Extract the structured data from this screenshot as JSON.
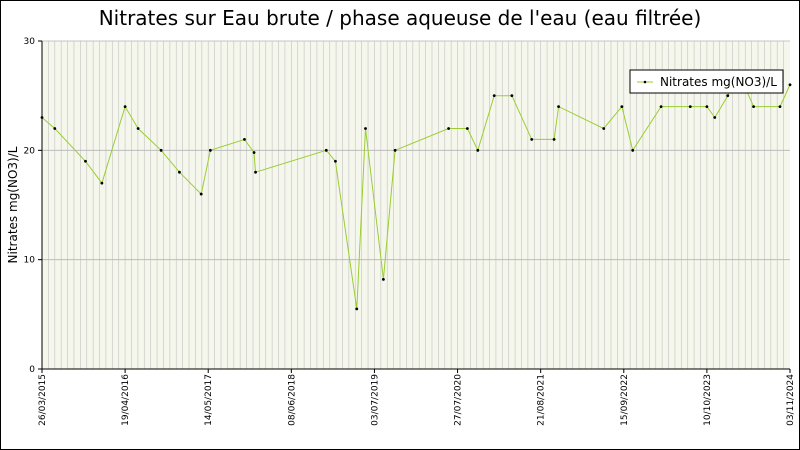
{
  "chart_data": {
    "type": "line",
    "title": "Nitrates sur Eau brute / phase aqueuse de l'eau (eau filtrée)",
    "ylabel": "Nitrates mg(NO3)/L",
    "xlabel": "",
    "ylim": [
      0,
      30
    ],
    "yticks": [
      0,
      10,
      20,
      30
    ],
    "xlim": [
      "2015-03-26",
      "2024-11-03"
    ],
    "xtick_labels": [
      "26/03/2015",
      "19/04/2016",
      "14/05/2017",
      "08/06/2018",
      "03/07/2019",
      "27/07/2020",
      "21/08/2021",
      "15/09/2022",
      "10/10/2023",
      "03/11/2024"
    ],
    "grid": true,
    "legend_position": "top-right",
    "series": [
      {
        "name": "Nitrates mg(NO3)/L",
        "color": "#9acd32",
        "points": [
          [
            "2015-03-26",
            23
          ],
          [
            "2015-05-25",
            22
          ],
          [
            "2015-10-16",
            19
          ],
          [
            "2016-01-01",
            17
          ],
          [
            "2016-04-19",
            24
          ],
          [
            "2016-06-19",
            22
          ],
          [
            "2016-10-05",
            20
          ],
          [
            "2016-12-30",
            18
          ],
          [
            "2017-04-11",
            16
          ],
          [
            "2017-05-24",
            20
          ],
          [
            "2017-10-31",
            21
          ],
          [
            "2017-12-15",
            19.8
          ],
          [
            "2017-12-22",
            18
          ],
          [
            "2018-11-19",
            20
          ],
          [
            "2019-01-01",
            19
          ],
          [
            "2019-04-11",
            5.5
          ],
          [
            "2019-05-22",
            22
          ],
          [
            "2019-08-14",
            8.2
          ],
          [
            "2019-10-08",
            20
          ],
          [
            "2020-06-15",
            22
          ],
          [
            "2020-09-11",
            22
          ],
          [
            "2020-10-30",
            20
          ],
          [
            "2021-01-15",
            25
          ],
          [
            "2021-04-08",
            25
          ],
          [
            "2021-07-10",
            21
          ],
          [
            "2021-10-23",
            21
          ],
          [
            "2021-11-13",
            24
          ],
          [
            "2022-06-13",
            22
          ],
          [
            "2022-09-06",
            24
          ],
          [
            "2022-10-27",
            20
          ],
          [
            "2023-03-09",
            24
          ],
          [
            "2023-07-24",
            24
          ],
          [
            "2023-10-10",
            24
          ],
          [
            "2023-11-16",
            23
          ],
          [
            "2024-01-16",
            25
          ],
          [
            "2024-03-09",
            27
          ],
          [
            "2024-05-16",
            24
          ],
          [
            "2024-09-17",
            24
          ],
          [
            "2024-11-03",
            26
          ]
        ]
      }
    ]
  }
}
